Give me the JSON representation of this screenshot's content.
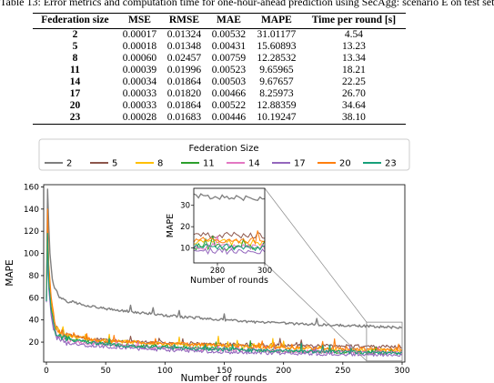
{
  "caption": "Table 13: Error metrics and computation time for one-hour-ahead prediction using SecAgg: scenario E on test set",
  "table": {
    "headers": [
      "Federation size",
      "MSE",
      "RMSE",
      "MAE",
      "MAPE",
      "Time per round [s]"
    ],
    "rows": [
      [
        "2",
        "0.00017",
        "0.01324",
        "0.00532",
        "31.01177",
        "4.54"
      ],
      [
        "5",
        "0.00018",
        "0.01348",
        "0.00431",
        "15.60893",
        "13.23"
      ],
      [
        "8",
        "0.00060",
        "0.02457",
        "0.00759",
        "12.28532",
        "13.34"
      ],
      [
        "11",
        "0.00039",
        "0.01996",
        "0.00523",
        "9.65965",
        "18.21"
      ],
      [
        "14",
        "0.00034",
        "0.01864",
        "0.00503",
        "9.67657",
        "22.25"
      ],
      [
        "17",
        "0.00033",
        "0.01820",
        "0.00466",
        "8.25973",
        "26.70"
      ],
      [
        "20",
        "0.00033",
        "0.01864",
        "0.00522",
        "12.88359",
        "34.64"
      ],
      [
        "23",
        "0.00028",
        "0.01683",
        "0.00446",
        "10.19247",
        "38.10"
      ]
    ]
  },
  "legend": {
    "title": "Federation Size",
    "items": [
      {
        "label": "2",
        "color": "#7f7f7f"
      },
      {
        "label": "5",
        "color": "#8c564b"
      },
      {
        "label": "8",
        "color": "#ffbf00"
      },
      {
        "label": "11",
        "color": "#2ca02c"
      },
      {
        "label": "14",
        "color": "#e377c2"
      },
      {
        "label": "17",
        "color": "#9467bd"
      },
      {
        "label": "20",
        "color": "#ff7f0e"
      },
      {
        "label": "23",
        "color": "#17a07a"
      }
    ]
  },
  "chart_data": {
    "type": "line",
    "xlabel": "Number of rounds",
    "ylabel": "MAPE",
    "xlim": [
      0,
      300
    ],
    "ylim": [
      2,
      162
    ],
    "xticks": [
      0,
      50,
      100,
      150,
      200,
      250,
      300
    ],
    "yticks": [
      20,
      40,
      60,
      80,
      100,
      120,
      140,
      160
    ],
    "series": [
      {
        "name": "2",
        "color": "#7f7f7f",
        "points": [
          [
            0,
            57
          ],
          [
            1,
            158
          ],
          [
            2,
            125
          ],
          [
            3,
            100
          ],
          [
            5,
            78
          ],
          [
            8,
            66
          ],
          [
            12,
            60
          ],
          [
            20,
            57
          ],
          [
            30,
            54
          ],
          [
            50,
            50
          ],
          [
            75,
            47
          ],
          [
            100,
            44
          ],
          [
            125,
            42
          ],
          [
            150,
            40
          ],
          [
            175,
            38
          ],
          [
            200,
            37
          ],
          [
            225,
            36
          ],
          [
            250,
            35
          ],
          [
            270,
            34.5
          ],
          [
            300,
            33
          ]
        ]
      },
      {
        "name": "5",
        "color": "#8c564b",
        "points": [
          [
            0,
            62
          ],
          [
            1,
            110
          ],
          [
            2,
            75
          ],
          [
            4,
            55
          ],
          [
            6,
            40
          ],
          [
            8,
            33
          ],
          [
            12,
            29
          ],
          [
            20,
            26
          ],
          [
            35,
            23
          ],
          [
            50,
            22
          ],
          [
            75,
            20
          ],
          [
            100,
            19
          ],
          [
            150,
            18
          ],
          [
            200,
            17
          ],
          [
            250,
            16.5
          ],
          [
            300,
            16
          ]
        ]
      },
      {
        "name": "8",
        "color": "#ffbf00",
        "points": [
          [
            0,
            65
          ],
          [
            1,
            125
          ],
          [
            2,
            85
          ],
          [
            4,
            58
          ],
          [
            6,
            40
          ],
          [
            8,
            32
          ],
          [
            12,
            28
          ],
          [
            20,
            25
          ],
          [
            35,
            23
          ],
          [
            50,
            21
          ],
          [
            75,
            20
          ],
          [
            100,
            18
          ],
          [
            150,
            17
          ],
          [
            200,
            15
          ],
          [
            250,
            13
          ],
          [
            300,
            12.5
          ]
        ]
      },
      {
        "name": "11",
        "color": "#2ca02c",
        "points": [
          [
            0,
            60
          ],
          [
            1,
            112
          ],
          [
            2,
            72
          ],
          [
            4,
            50
          ],
          [
            6,
            35
          ],
          [
            8,
            28
          ],
          [
            12,
            25
          ],
          [
            20,
            22
          ],
          [
            35,
            20
          ],
          [
            50,
            19
          ],
          [
            75,
            17
          ],
          [
            100,
            16
          ],
          [
            150,
            14
          ],
          [
            200,
            12
          ],
          [
            250,
            11
          ],
          [
            300,
            10
          ]
        ]
      },
      {
        "name": "14",
        "color": "#e377c2",
        "points": [
          [
            0,
            58
          ],
          [
            1,
            115
          ],
          [
            2,
            70
          ],
          [
            4,
            48
          ],
          [
            6,
            34
          ],
          [
            8,
            27
          ],
          [
            12,
            24
          ],
          [
            20,
            21
          ],
          [
            35,
            19
          ],
          [
            50,
            18
          ],
          [
            75,
            16
          ],
          [
            100,
            15
          ],
          [
            150,
            13
          ],
          [
            200,
            12
          ],
          [
            250,
            11
          ],
          [
            300,
            10.5
          ]
        ]
      },
      {
        "name": "17",
        "color": "#9467bd",
        "points": [
          [
            0,
            56
          ],
          [
            1,
            108
          ],
          [
            2,
            68
          ],
          [
            4,
            45
          ],
          [
            6,
            32
          ],
          [
            8,
            25
          ],
          [
            12,
            22
          ],
          [
            20,
            19
          ],
          [
            35,
            17
          ],
          [
            50,
            16
          ],
          [
            75,
            14
          ],
          [
            100,
            13
          ],
          [
            150,
            11
          ],
          [
            200,
            10
          ],
          [
            250,
            9
          ],
          [
            300,
            8.5
          ]
        ]
      },
      {
        "name": "20",
        "color": "#ff7f0e",
        "points": [
          [
            0,
            60
          ],
          [
            1,
            140
          ],
          [
            2,
            90
          ],
          [
            4,
            62
          ],
          [
            6,
            44
          ],
          [
            8,
            34
          ],
          [
            12,
            29
          ],
          [
            20,
            26
          ],
          [
            35,
            23
          ],
          [
            50,
            21
          ],
          [
            75,
            20
          ],
          [
            100,
            19
          ],
          [
            150,
            17
          ],
          [
            200,
            15
          ],
          [
            250,
            14
          ],
          [
            300,
            13.5
          ]
        ]
      },
      {
        "name": "23",
        "color": "#17a07a",
        "points": [
          [
            0,
            57
          ],
          [
            1,
            118
          ],
          [
            2,
            74
          ],
          [
            4,
            50
          ],
          [
            6,
            36
          ],
          [
            8,
            28
          ],
          [
            12,
            25
          ],
          [
            20,
            22
          ],
          [
            35,
            20
          ],
          [
            50,
            18
          ],
          [
            75,
            16
          ],
          [
            100,
            15
          ],
          [
            150,
            13
          ],
          [
            200,
            12
          ],
          [
            250,
            11
          ],
          [
            300,
            10.2
          ]
        ]
      }
    ],
    "inset": {
      "xlabel": "Number of rounds",
      "ylabel": "MAPE",
      "xlim": [
        270,
        300
      ],
      "ylim": [
        3,
        38
      ],
      "xticks": [
        280,
        300
      ],
      "yticks": [
        10,
        20,
        30
      ]
    }
  }
}
